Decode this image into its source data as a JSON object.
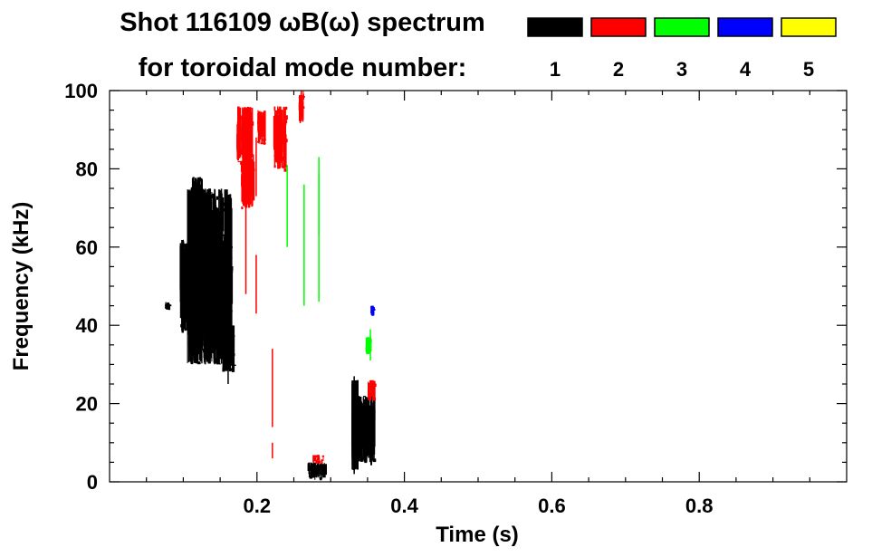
{
  "chart_data": {
    "type": "heatmap",
    "title_line1": "Shot 116109 ωB(ω) spectrum",
    "title_line2": "for toroidal mode number:",
    "xlabel": "Time (s)",
    "ylabel": "Frequency (kHz)",
    "xlim": [
      0.0,
      1.0
    ],
    "ylim": [
      0,
      100
    ],
    "x_ticks": [
      0.2,
      0.4,
      0.6,
      0.8
    ],
    "y_ticks": [
      0,
      20,
      40,
      60,
      80,
      100
    ],
    "x_minor_step": 0.05,
    "y_minor_step": 5,
    "legend_placement": "top-right",
    "legend": [
      {
        "label": "1",
        "color": "#000000"
      },
      {
        "label": "2",
        "color": "#ff0000"
      },
      {
        "label": "3",
        "color": "#00ff00"
      },
      {
        "label": "4",
        "color": "#0000ff"
      },
      {
        "label": "5",
        "color": "#ffff00"
      }
    ],
    "regions": [
      {
        "mode": 1,
        "t0": 0.105,
        "t1": 0.165,
        "f0": 30,
        "f1": 75,
        "density": 0.85
      },
      {
        "mode": 1,
        "t0": 0.095,
        "t1": 0.115,
        "f0": 38,
        "f1": 62,
        "density": 0.55
      },
      {
        "mode": 1,
        "t0": 0.11,
        "t1": 0.125,
        "f0": 70,
        "f1": 78,
        "density": 0.4
      },
      {
        "mode": 1,
        "t0": 0.15,
        "t1": 0.168,
        "f0": 28,
        "f1": 40,
        "density": 0.45
      },
      {
        "mode": 1,
        "t0": 0.335,
        "t1": 0.358,
        "f0": 5,
        "f1": 22,
        "density": 0.7
      },
      {
        "mode": 1,
        "t0": 0.328,
        "t1": 0.335,
        "f0": 3,
        "f1": 26,
        "density": 0.5
      },
      {
        "mode": 1,
        "t0": 0.268,
        "t1": 0.292,
        "f0": 1,
        "f1": 5,
        "density": 0.75
      },
      {
        "mode": 1,
        "t0": 0.075,
        "t1": 0.08,
        "f0": 44,
        "f1": 46,
        "density": 0.6
      },
      {
        "mode": 2,
        "t0": 0.172,
        "t1": 0.192,
        "f0": 82,
        "f1": 96,
        "density": 0.55
      },
      {
        "mode": 2,
        "t0": 0.178,
        "t1": 0.194,
        "f0": 70,
        "f1": 84,
        "density": 0.35
      },
      {
        "mode": 2,
        "t0": 0.2,
        "t1": 0.21,
        "f0": 86,
        "f1": 95,
        "density": 0.3
      },
      {
        "mode": 2,
        "t0": 0.222,
        "t1": 0.238,
        "f0": 80,
        "f1": 96,
        "density": 0.45
      },
      {
        "mode": 2,
        "t0": 0.256,
        "t1": 0.263,
        "f0": 92,
        "f1": 100,
        "density": 0.4
      },
      {
        "mode": 2,
        "t0": 0.35,
        "t1": 0.358,
        "f0": 21,
        "f1": 26,
        "density": 0.7
      },
      {
        "mode": 2,
        "t0": 0.275,
        "t1": 0.29,
        "f0": 5,
        "f1": 7,
        "density": 0.45
      },
      {
        "mode": 3,
        "t0": 0.347,
        "t1": 0.354,
        "f0": 33,
        "f1": 37,
        "density": 0.6
      },
      {
        "mode": 4,
        "t0": 0.354,
        "t1": 0.357,
        "f0": 43,
        "f1": 45,
        "density": 0.9
      }
    ],
    "lines": [
      {
        "mode": 1,
        "t": 0.135,
        "f0": 40,
        "f1": 72
      },
      {
        "mode": 1,
        "t": 0.16,
        "f0": 25,
        "f1": 35
      },
      {
        "mode": 2,
        "t": 0.184,
        "f0": 48,
        "f1": 82
      },
      {
        "mode": 2,
        "t": 0.198,
        "f0": 43,
        "f1": 58
      },
      {
        "mode": 2,
        "t": 0.198,
        "f0": 73,
        "f1": 88
      },
      {
        "mode": 2,
        "t": 0.22,
        "f0": 14,
        "f1": 34
      },
      {
        "mode": 2,
        "t": 0.22,
        "f0": 6,
        "f1": 10
      },
      {
        "mode": 3,
        "t": 0.24,
        "f0": 60,
        "f1": 81
      },
      {
        "mode": 3,
        "t": 0.263,
        "f0": 45,
        "f1": 76
      },
      {
        "mode": 3,
        "t": 0.283,
        "f0": 46,
        "f1": 83
      },
      {
        "mode": 3,
        "t": 0.283,
        "f0": 63,
        "f1": 79
      },
      {
        "mode": 3,
        "t": 0.353,
        "f0": 31,
        "f1": 39
      },
      {
        "mode": 1,
        "t": 0.331,
        "f0": 2,
        "f1": 27
      },
      {
        "mode": 1,
        "t": 0.346,
        "f0": 5,
        "f1": 14
      }
    ]
  }
}
